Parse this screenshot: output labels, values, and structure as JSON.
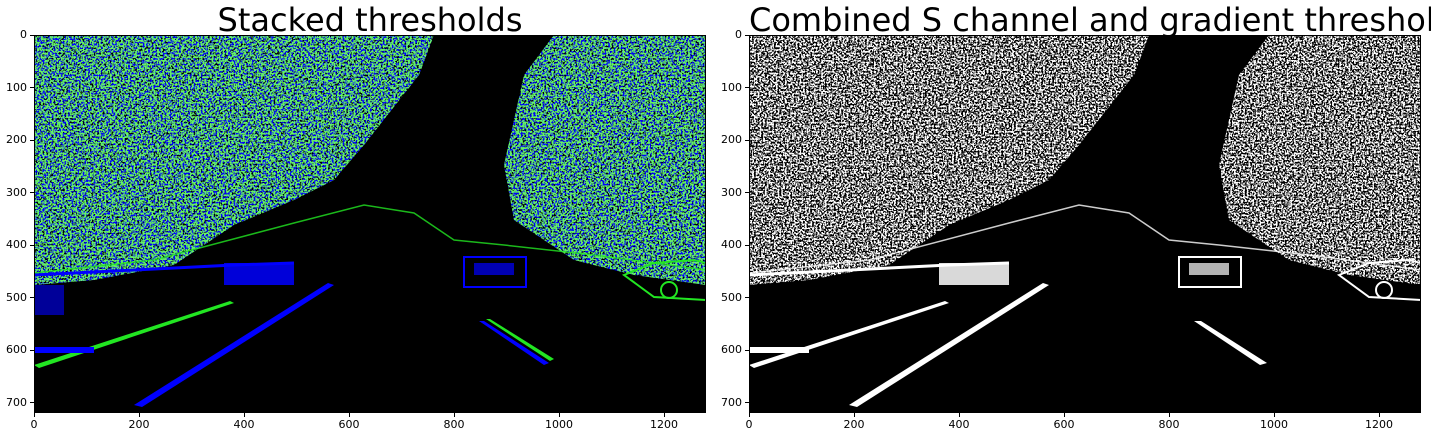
{
  "figure": {
    "panels": [
      {
        "title": "Stacked thresholds",
        "image": {
          "description_colors": {
            "background": "#000000",
            "green": "#22e622",
            "blue": "#0000ff"
          },
          "content": "binary threshold overlay"
        },
        "xaxis": {
          "range": [
            0,
            1280
          ],
          "ticks": [
            0,
            200,
            400,
            600,
            800,
            1000,
            1200
          ]
        },
        "yaxis": {
          "range": [
            0,
            720
          ],
          "ticks": [
            0,
            100,
            200,
            300,
            400,
            500,
            600,
            700
          ]
        }
      },
      {
        "title": "Combined S channel and gradient thresholds",
        "image": {
          "description_colors": {
            "background": "#000000",
            "foreground": "#ffffff"
          },
          "content": "binary threshold mask"
        },
        "xaxis": {
          "range": [
            0,
            1280
          ],
          "ticks": [
            0,
            200,
            400,
            600,
            800,
            1000,
            1200
          ]
        },
        "yaxis": {
          "range": [
            0,
            720
          ],
          "ticks": [
            0,
            100,
            200,
            300,
            400,
            500,
            600,
            700
          ]
        }
      }
    ]
  }
}
